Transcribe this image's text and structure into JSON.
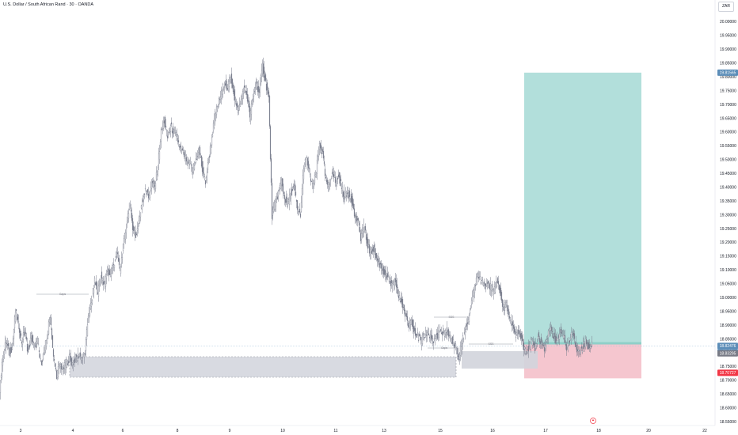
{
  "header": {
    "symbol_title": "U.S. Dollar / South African Rand · 30 · OANDA",
    "currency": "ZAR"
  },
  "colors": {
    "candle": "#7a7f8e",
    "profit_zone": "#b2dfdb",
    "loss_zone": "#f5c6cf",
    "gray_zone": "#d1d4dc",
    "price_tag": "#5b8db8",
    "target_tag": "#5b8db8",
    "stop_tag": "#f23645"
  },
  "chart_data": {
    "type": "candlestick",
    "y_axis": {
      "range": [
        18.54,
        20.04
      ],
      "ticks": [
        "20.00000",
        "19.95000",
        "19.90000",
        "19.85000",
        "19.80000",
        "19.75000",
        "19.70000",
        "19.65000",
        "19.60000",
        "19.55000",
        "19.50000",
        "19.45000",
        "19.40000",
        "19.35000",
        "19.30000",
        "19.25000",
        "19.20000",
        "19.15000",
        "19.10000",
        "19.05000",
        "19.00000",
        "18.95000",
        "18.90000",
        "18.85000",
        "18.80000",
        "18.75000",
        "18.70000",
        "18.65000",
        "18.60000",
        "18.55000"
      ]
    },
    "x_axis": {
      "ticks": [
        "3",
        "4",
        "6",
        "8",
        "9",
        "10",
        "11",
        "13",
        "15",
        "16",
        "17",
        "18",
        "20",
        "22"
      ]
    },
    "price_path": [
      [
        0,
        18.67
      ],
      [
        4,
        18.78
      ],
      [
        8,
        18.84
      ],
      [
        12,
        18.8
      ],
      [
        16,
        18.82
      ],
      [
        20,
        18.95
      ],
      [
        24,
        18.9
      ],
      [
        28,
        18.84
      ],
      [
        32,
        18.88
      ],
      [
        36,
        18.8
      ],
      [
        40,
        18.86
      ],
      [
        44,
        18.82
      ],
      [
        48,
        18.84
      ],
      [
        52,
        18.76
      ],
      [
        56,
        18.8
      ],
      [
        60,
        18.86
      ],
      [
        64,
        18.94
      ],
      [
        68,
        18.78
      ],
      [
        72,
        18.72
      ],
      [
        76,
        18.76
      ],
      [
        80,
        18.74
      ],
      [
        84,
        18.76
      ],
      [
        88,
        18.78
      ],
      [
        92,
        18.76
      ],
      [
        96,
        18.78
      ],
      [
        100,
        18.79
      ],
      [
        104,
        18.78
      ],
      [
        108,
        18.8
      ],
      [
        112,
        18.94
      ],
      [
        116,
        18.98
      ],
      [
        120,
        19.06
      ],
      [
        124,
        19.02
      ],
      [
        128,
        19.08
      ],
      [
        132,
        19.04
      ],
      [
        136,
        19.1
      ],
      [
        140,
        19.08
      ],
      [
        144,
        19.12
      ],
      [
        148,
        19.16
      ],
      [
        152,
        19.1
      ],
      [
        156,
        19.18
      ],
      [
        160,
        19.26
      ],
      [
        164,
        19.34
      ],
      [
        168,
        19.26
      ],
      [
        172,
        19.22
      ],
      [
        176,
        19.28
      ],
      [
        180,
        19.34
      ],
      [
        184,
        19.4
      ],
      [
        188,
        19.36
      ],
      [
        192,
        19.42
      ],
      [
        196,
        19.4
      ],
      [
        200,
        19.48
      ],
      [
        204,
        19.6
      ],
      [
        208,
        19.64
      ],
      [
        212,
        19.58
      ],
      [
        216,
        19.62
      ],
      [
        220,
        19.6
      ],
      [
        224,
        19.58
      ],
      [
        228,
        19.54
      ],
      [
        232,
        19.52
      ],
      [
        236,
        19.5
      ],
      [
        240,
        19.48
      ],
      [
        244,
        19.46
      ],
      [
        248,
        19.5
      ],
      [
        252,
        19.54
      ],
      [
        256,
        19.46
      ],
      [
        260,
        19.42
      ],
      [
        264,
        19.5
      ],
      [
        268,
        19.58
      ],
      [
        272,
        19.66
      ],
      [
        276,
        19.7
      ],
      [
        280,
        19.74
      ],
      [
        284,
        19.78
      ],
      [
        288,
        19.76
      ],
      [
        292,
        19.8
      ],
      [
        296,
        19.74
      ],
      [
        300,
        19.68
      ],
      [
        304,
        19.7
      ],
      [
        308,
        19.76
      ],
      [
        312,
        19.74
      ],
      [
        316,
        19.66
      ],
      [
        320,
        19.72
      ],
      [
        324,
        19.78
      ],
      [
        328,
        19.74
      ],
      [
        332,
        19.84
      ],
      [
        336,
        19.78
      ],
      [
        340,
        19.72
      ],
      [
        344,
        19.3
      ],
      [
        348,
        19.34
      ],
      [
        352,
        19.38
      ],
      [
        356,
        19.42
      ],
      [
        360,
        19.36
      ],
      [
        364,
        19.34
      ],
      [
        368,
        19.38
      ],
      [
        372,
        19.4
      ],
      [
        376,
        19.32
      ],
      [
        380,
        19.3
      ],
      [
        384,
        19.48
      ],
      [
        388,
        19.5
      ],
      [
        392,
        19.44
      ],
      [
        396,
        19.4
      ],
      [
        400,
        19.46
      ],
      [
        404,
        19.56
      ],
      [
        408,
        19.52
      ],
      [
        412,
        19.42
      ],
      [
        416,
        19.4
      ],
      [
        420,
        19.46
      ],
      [
        424,
        19.42
      ],
      [
        428,
        19.44
      ],
      [
        432,
        19.4
      ],
      [
        436,
        19.36
      ],
      [
        440,
        19.38
      ],
      [
        444,
        19.36
      ],
      [
        448,
        19.3
      ],
      [
        452,
        19.28
      ],
      [
        456,
        19.22
      ],
      [
        460,
        19.26
      ],
      [
        464,
        19.2
      ],
      [
        468,
        19.16
      ],
      [
        472,
        19.18
      ],
      [
        476,
        19.14
      ],
      [
        480,
        19.12
      ],
      [
        484,
        19.1
      ],
      [
        488,
        19.08
      ],
      [
        492,
        19.06
      ],
      [
        496,
        19.04
      ],
      [
        500,
        19.06
      ],
      [
        504,
        19.0
      ],
      [
        508,
        18.98
      ],
      [
        512,
        18.94
      ],
      [
        516,
        18.9
      ],
      [
        520,
        18.92
      ],
      [
        524,
        18.88
      ],
      [
        528,
        18.86
      ],
      [
        532,
        18.84
      ],
      [
        536,
        18.86
      ],
      [
        540,
        18.88
      ],
      [
        544,
        18.86
      ],
      [
        548,
        18.84
      ],
      [
        552,
        18.86
      ],
      [
        556,
        18.88
      ],
      [
        560,
        18.86
      ],
      [
        564,
        18.88
      ],
      [
        568,
        18.86
      ],
      [
        572,
        18.84
      ],
      [
        576,
        18.82
      ],
      [
        580,
        18.78
      ],
      [
        584,
        18.84
      ],
      [
        588,
        18.88
      ],
      [
        592,
        18.92
      ],
      [
        596,
        18.98
      ],
      [
        600,
        19.04
      ],
      [
        604,
        19.08
      ],
      [
        608,
        19.06
      ],
      [
        612,
        19.04
      ],
      [
        616,
        19.06
      ],
      [
        620,
        19.04
      ],
      [
        624,
        19.02
      ],
      [
        628,
        19.06
      ],
      [
        632,
        19.02
      ],
      [
        636,
        18.96
      ],
      [
        640,
        18.98
      ],
      [
        644,
        18.92
      ],
      [
        648,
        18.9
      ],
      [
        652,
        18.86
      ],
      [
        656,
        18.88
      ],
      [
        660,
        18.84
      ],
      [
        664,
        18.8
      ],
      [
        668,
        18.82
      ],
      [
        672,
        18.84
      ],
      [
        676,
        18.82
      ],
      [
        680,
        18.86
      ],
      [
        684,
        18.84
      ],
      [
        688,
        18.82
      ],
      [
        692,
        18.86
      ],
      [
        696,
        18.88
      ],
      [
        700,
        18.86
      ],
      [
        704,
        18.84
      ],
      [
        708,
        18.88
      ],
      [
        712,
        18.86
      ],
      [
        716,
        18.82
      ],
      [
        720,
        18.84
      ],
      [
        724,
        18.88
      ],
      [
        728,
        18.82
      ],
      [
        732,
        18.8
      ],
      [
        736,
        18.82
      ],
      [
        740,
        18.84
      ],
      [
        744,
        18.82
      ],
      [
        748,
        18.83
      ]
    ],
    "last_price": 18.82476,
    "trade": {
      "target": 19.81565,
      "entry": 18.83295,
      "stop": 18.70727
    }
  },
  "labels": {
    "last_price_label": "18.82476",
    "countdown_label": "09:22",
    "entry_label": "18.83295",
    "target_label": "19.81565",
    "stop_label": "18.70727",
    "gap_label_1": "Gaps",
    "gap_label_2": "SSS",
    "gap_label_3": "Gaps",
    "gap_label_4": "SSS",
    "replay_icon": "replay-icon"
  }
}
